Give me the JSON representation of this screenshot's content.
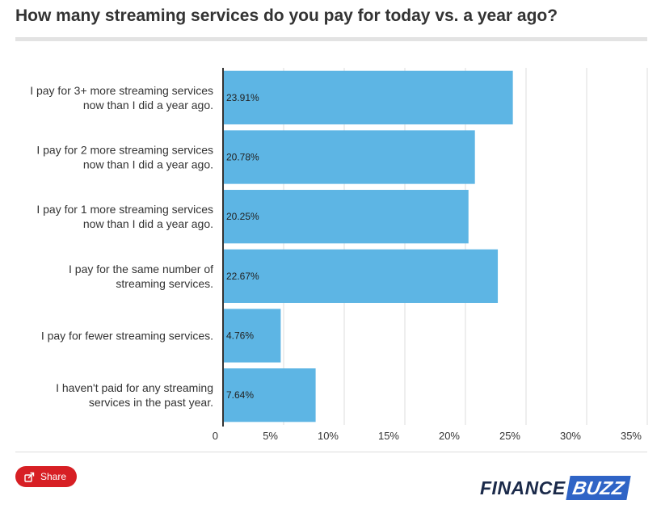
{
  "title": "How many streaming services do you pay for today vs. a year ago?",
  "share_label": "Share",
  "logo": {
    "word1": "FINANCE",
    "word2": "BUZZ"
  },
  "colors": {
    "bar": "#5db5e4",
    "share": "#d71f24",
    "logo_dark": "#1b2a4a",
    "logo_blue": "#2f64c6"
  },
  "chart_data": {
    "type": "bar",
    "orientation": "horizontal",
    "categories": [
      [
        "I pay for 3+ more streaming services",
        "now than I did a year ago."
      ],
      [
        "I pay for 2 more streaming services",
        "now than I did a year ago."
      ],
      [
        "I pay for 1 more streaming services",
        "now than I did a year ago."
      ],
      [
        "I pay for the same number of",
        "streaming services."
      ],
      [
        "I pay for fewer streaming services."
      ],
      [
        "I haven't paid for any streaming",
        "services in the past year."
      ]
    ],
    "values": [
      23.91,
      20.78,
      20.25,
      22.67,
      4.76,
      7.64
    ],
    "value_labels": [
      "23.91%",
      "20.78%",
      "20.25%",
      "22.67%",
      "4.76%",
      "7.64%"
    ],
    "xlim": [
      0,
      35
    ],
    "xticks": [
      0,
      5,
      10,
      15,
      20,
      25,
      30,
      35
    ],
    "xtick_labels": [
      "0",
      "5%",
      "10%",
      "15%",
      "20%",
      "25%",
      "30%",
      "35%"
    ],
    "grid": "vertical"
  }
}
